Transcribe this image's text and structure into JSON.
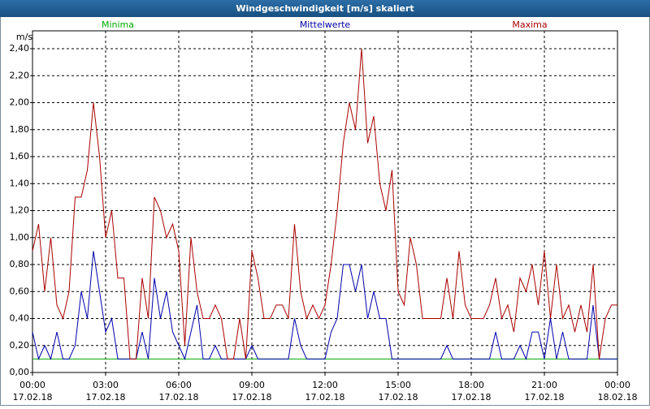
{
  "chart_data": {
    "type": "line",
    "title": "Windgeschwindigkeit [m/s] skaliert",
    "y_label": "m/s",
    "x": [
      0,
      0.25,
      0.5,
      0.75,
      1,
      1.25,
      1.5,
      1.75,
      2,
      2.25,
      2.5,
      2.75,
      3,
      3.25,
      3.5,
      3.75,
      4,
      4.25,
      4.5,
      4.75,
      5,
      5.25,
      5.5,
      5.75,
      6,
      6.25,
      6.5,
      6.75,
      7,
      7.25,
      7.5,
      7.75,
      8,
      8.25,
      8.5,
      8.75,
      9,
      9.25,
      9.5,
      9.75,
      10,
      10.25,
      10.5,
      10.75,
      11,
      11.25,
      11.5,
      11.75,
      12,
      12.25,
      12.5,
      12.75,
      13,
      13.25,
      13.5,
      13.75,
      14,
      14.25,
      14.5,
      14.75,
      15,
      15.25,
      15.5,
      15.75,
      16,
      16.25,
      16.5,
      16.75,
      17,
      17.25,
      17.5,
      17.75,
      18,
      18.25,
      18.5,
      18.75,
      19,
      19.25,
      19.5,
      19.75,
      20,
      20.25,
      20.5,
      20.75,
      21,
      21.25,
      21.5,
      21.75,
      22,
      22.25,
      22.5,
      22.75,
      23,
      23.25,
      23.5,
      23.75,
      24
    ],
    "series": [
      {
        "name": "Minima",
        "color": "#00aa00",
        "values": [
          0.1,
          0.1,
          0.1,
          0.1,
          0.1,
          0.1,
          0.1,
          0.1,
          0.1,
          0.1,
          0.1,
          0.1,
          0.1,
          0.1,
          0.1,
          0.1,
          0.1,
          0.1,
          0.1,
          0.1,
          0.1,
          0.1,
          0.1,
          0.1,
          0.1,
          0.1,
          0.1,
          0.1,
          0.1,
          0.1,
          0.1,
          0.1,
          0.1,
          0.1,
          0.1,
          0.1,
          0.1,
          0.1,
          0.1,
          0.1,
          0.1,
          0.1,
          0.1,
          0.1,
          0.1,
          0.1,
          0.1,
          0.1,
          0.1,
          0.1,
          0.1,
          0.1,
          0.1,
          0.1,
          0.1,
          0.1,
          0.1,
          0.1,
          0.1,
          0.1,
          0.1,
          0.1,
          0.1,
          0.1,
          0.1,
          0.1,
          0.1,
          0.1,
          0.1,
          0.1,
          0.1,
          0.1,
          0.1,
          0.1,
          0.1,
          0.1,
          0.1,
          0.1,
          0.1,
          0.1,
          0.1,
          0.1,
          0.1,
          0.1,
          0.1,
          0.1,
          0.1,
          0.1,
          0.1,
          0.1,
          0.1,
          0.1,
          0.1,
          0.1,
          0.1,
          0.1,
          0.1
        ]
      },
      {
        "name": "Mittelwerte",
        "color": "#0000aa",
        "values": [
          0.3,
          0.1,
          0.2,
          0.1,
          0.3,
          0.1,
          0.1,
          0.2,
          0.6,
          0.4,
          0.9,
          0.6,
          0.3,
          0.4,
          0.1,
          0.1,
          0.1,
          0.1,
          0.3,
          0.1,
          0.7,
          0.4,
          0.6,
          0.3,
          0.2,
          0.1,
          0.3,
          0.5,
          0.1,
          0.1,
          0.2,
          0.1,
          0.1,
          0.1,
          0.1,
          0.1,
          0.2,
          0.1,
          0.1,
          0.1,
          0.1,
          0.1,
          0.1,
          0.4,
          0.2,
          0.1,
          0.1,
          0.1,
          0.1,
          0.3,
          0.4,
          0.8,
          0.8,
          0.6,
          0.8,
          0.4,
          0.6,
          0.4,
          0.4,
          0.1,
          0.1,
          0.1,
          0.1,
          0.1,
          0.1,
          0.1,
          0.1,
          0.1,
          0.2,
          0.1,
          0.1,
          0.1,
          0.1,
          0.1,
          0.1,
          0.1,
          0.3,
          0.1,
          0.1,
          0.1,
          0.2,
          0.1,
          0.3,
          0.3,
          0.1,
          0.4,
          0.1,
          0.3,
          0.1,
          0.1,
          0.1,
          0.1,
          0.5,
          0.1,
          0.1,
          0.1,
          0.1
        ]
      },
      {
        "name": "Maxima",
        "color": "#aa0000",
        "values": [
          0.9,
          1.1,
          0.6,
          1.0,
          0.5,
          0.4,
          0.6,
          1.3,
          1.3,
          1.5,
          2.0,
          1.6,
          1.0,
          1.2,
          0.7,
          0.7,
          0.1,
          0.1,
          0.7,
          0.4,
          1.3,
          1.2,
          1.0,
          1.1,
          0.9,
          0.2,
          1.0,
          0.6,
          0.4,
          0.4,
          0.5,
          0.4,
          0.1,
          0.1,
          0.4,
          0.1,
          0.9,
          0.7,
          0.4,
          0.4,
          0.5,
          0.5,
          0.4,
          1.1,
          0.6,
          0.4,
          0.5,
          0.4,
          0.5,
          0.8,
          1.2,
          1.7,
          2.0,
          1.8,
          2.4,
          1.7,
          1.9,
          1.4,
          1.2,
          1.5,
          0.6,
          0.5,
          1.0,
          0.8,
          0.4,
          0.4,
          0.4,
          0.4,
          0.7,
          0.4,
          0.9,
          0.5,
          0.4,
          0.4,
          0.4,
          0.5,
          0.7,
          0.4,
          0.5,
          0.3,
          0.7,
          0.6,
          0.8,
          0.5,
          0.9,
          0.4,
          0.8,
          0.4,
          0.5,
          0.3,
          0.5,
          0.3,
          0.8,
          0.1,
          0.4,
          0.5,
          0.5
        ]
      }
    ],
    "xlim": [
      0,
      24
    ],
    "xticks": [
      {
        "value": 0,
        "label": "00:00",
        "date": "17.02.18"
      },
      {
        "value": 3,
        "label": "03:00",
        "date": "17.02.18"
      },
      {
        "value": 6,
        "label": "06:00",
        "date": "17.02.18"
      },
      {
        "value": 9,
        "label": "09:00",
        "date": "17.02.18"
      },
      {
        "value": 12,
        "label": "12:00",
        "date": "17.02.18"
      },
      {
        "value": 15,
        "label": "15:00",
        "date": "17.02.18"
      },
      {
        "value": 18,
        "label": "18:00",
        "date": "17.02.18"
      },
      {
        "value": 21,
        "label": "21:00",
        "date": "17.02.18"
      },
      {
        "value": 24,
        "label": "00:00",
        "date": "18.02.18"
      }
    ],
    "ylim": [
      0,
      2.4
    ],
    "yticks": [
      {
        "value": 0,
        "label": "0,00"
      },
      {
        "value": 0.2,
        "label": "0,20"
      },
      {
        "value": 0.4,
        "label": "0,40"
      },
      {
        "value": 0.6,
        "label": "0,60"
      },
      {
        "value": 0.8,
        "label": "0,80"
      },
      {
        "value": 1.0,
        "label": "1,00"
      },
      {
        "value": 1.2,
        "label": "1,20"
      },
      {
        "value": 1.4,
        "label": "1,40"
      },
      {
        "value": 1.6,
        "label": "1,60"
      },
      {
        "value": 1.8,
        "label": "1,80"
      },
      {
        "value": 2.0,
        "label": "2,00"
      },
      {
        "value": 2.2,
        "label": "2,20"
      },
      {
        "value": 2.4,
        "label": "2,40"
      }
    ],
    "grid": true
  }
}
